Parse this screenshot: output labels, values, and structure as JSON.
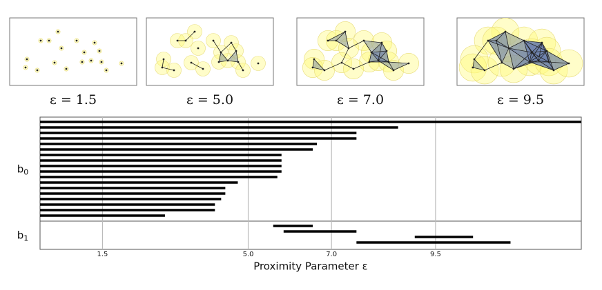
{
  "chart_data": {
    "type": "barcode",
    "panels": [
      {
        "label": "ε = 1.5",
        "epsilon": 1.5
      },
      {
        "label": "ε = 5.0",
        "epsilon": 5.0
      },
      {
        "label": "ε = 7.0",
        "epsilon": 7.0
      },
      {
        "label": "ε = 9.5",
        "epsilon": 9.5
      }
    ],
    "groups": [
      {
        "label": "b",
        "subscript": "0",
        "intervals": [
          [
            0,
            13
          ],
          [
            0,
            8.6
          ],
          [
            0,
            7.6
          ],
          [
            0,
            7.6
          ],
          [
            0,
            6.65
          ],
          [
            0,
            6.55
          ],
          [
            0,
            5.8
          ],
          [
            0,
            5.8
          ],
          [
            0,
            5.8
          ],
          [
            0,
            5.8
          ],
          [
            0,
            5.7
          ],
          [
            0,
            4.75
          ],
          [
            0,
            4.45
          ],
          [
            0,
            4.45
          ],
          [
            0,
            4.35
          ],
          [
            0,
            4.2
          ],
          [
            0,
            4.2
          ],
          [
            0,
            3.0
          ]
        ]
      },
      {
        "label": "b",
        "subscript": "1",
        "intervals": [
          [
            5.6,
            6.55
          ],
          [
            5.85,
            7.6
          ],
          [
            9.0,
            10.4
          ],
          [
            7.6,
            11.3
          ]
        ]
      }
    ],
    "xlabel": "Proximity Parameter ε",
    "xlim": [
      0,
      13
    ],
    "xticks": [
      1.5,
      {
        "value": 5,
        "label": "5.0"
      },
      {
        "value": 7,
        "label": "7.0"
      },
      9.5
    ],
    "grid": true,
    "color": "#000000"
  }
}
